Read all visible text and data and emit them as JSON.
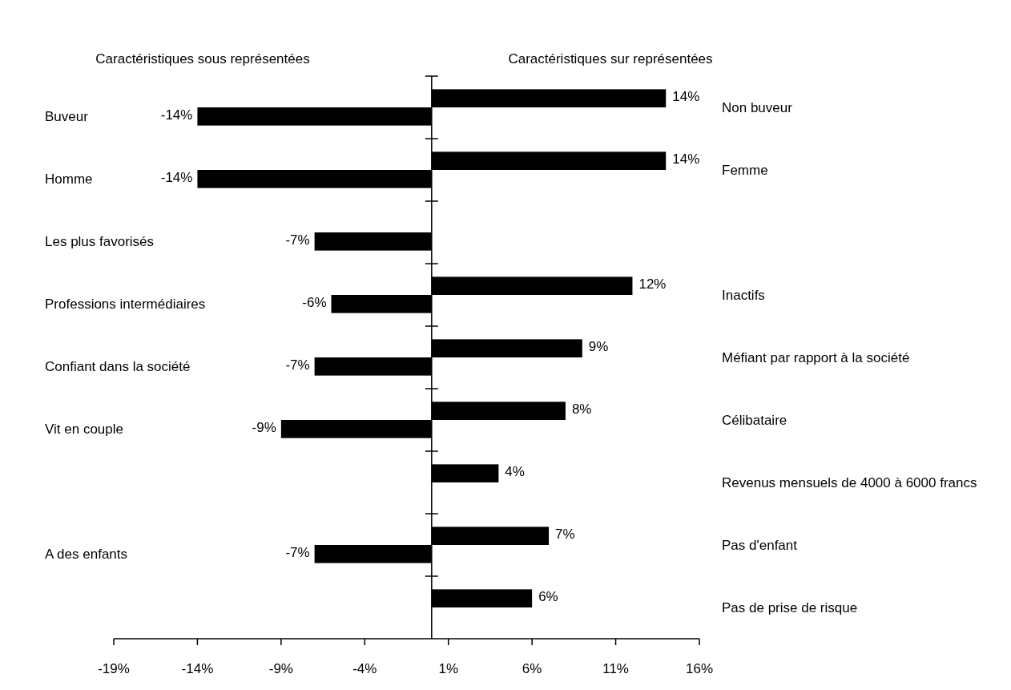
{
  "chart_data": {
    "type": "bar",
    "orientation": "horizontal",
    "annotations": [
      "Caractéristiques sous représentées",
      "Caractéristiques sur représentées"
    ],
    "categories": [
      "Buveur",
      "Homme",
      "Les plus favorisés",
      "Professions intermédiaires",
      "Confiant dans la société",
      "Vit en couple",
      null,
      "A des enfants",
      null
    ],
    "y2_categories": [
      "Non buveur",
      "Femme",
      null,
      "Inactifs",
      "Méfiant par rapport à la société",
      "Célibataire",
      "Revenus mensuels de 4000 à 6000 francs",
      "Pas d'enfant",
      "Pas de prise de risque"
    ],
    "series": [
      {
        "color": "#000000",
        "values": [
          14,
          14,
          null,
          12,
          9,
          8,
          4,
          7,
          6
        ],
        "value_labels": [
          "14%",
          "14%",
          null,
          "12%",
          "9%",
          "8%",
          "4%",
          "7%",
          "6%"
        ]
      },
      {
        "color": "#000000",
        "values": [
          -14,
          -14,
          -7,
          -6,
          -7,
          -9,
          null,
          -7,
          null
        ],
        "value_labels": [
          "-14%",
          "-14%",
          "-7%",
          "-6%",
          "-7%",
          "-9%",
          null,
          "-7%",
          null
        ]
      }
    ],
    "xlim": [
      -19,
      16
    ],
    "xticks": [
      {
        "value": -19,
        "label": "-19%"
      },
      {
        "value": -14,
        "label": "-14%"
      },
      {
        "value": -9,
        "label": "-9%"
      },
      {
        "value": -4,
        "label": "-4%"
      },
      {
        "value": 1,
        "label": "1%"
      },
      {
        "value": 6,
        "label": "6%"
      },
      {
        "value": 11,
        "label": "11%"
      },
      {
        "value": 16,
        "label": "16%"
      }
    ]
  }
}
